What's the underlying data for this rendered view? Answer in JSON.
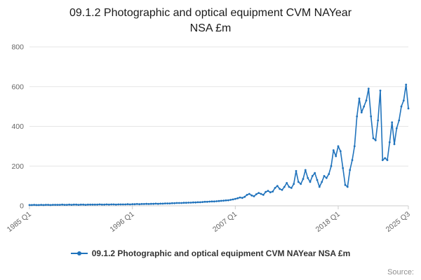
{
  "title": {
    "line1": "09.1.2 Photographic and optical equipment CVM NAYear",
    "line2": "NSA £m"
  },
  "legend": {
    "label": "09.1.2 Photographic and optical equipment CVM NAYear NSA £m"
  },
  "source": {
    "label": "Source:"
  },
  "chart_data": {
    "type": "line",
    "title": "09.1.2 Photographic and optical equipment CVM NAYear NSA £m",
    "series_name": "09.1.2 Photographic and optical equipment CVM NAYear NSA £m",
    "frequency": "quarterly",
    "x_start": "1985 Q1",
    "x_end": "2025 Q3",
    "xlabel": "",
    "ylabel": "",
    "ylim": [
      0,
      800
    ],
    "yticks": [
      0,
      200,
      400,
      600,
      800
    ],
    "grid": true,
    "legend_position": "bottom",
    "line_color": "#2073bc",
    "grid_color": "#e6e6e6",
    "axis_color": "#cccccc",
    "tick_label_color": "#666666",
    "x_ticks": [
      {
        "index": 0,
        "label": "1985 Q1"
      },
      {
        "index": 44,
        "label": "1996 Q1"
      },
      {
        "index": 88,
        "label": "2007 Q1"
      },
      {
        "index": 132,
        "label": "2018 Q1"
      },
      {
        "index": 162,
        "label": "2025 Q3"
      }
    ],
    "values": [
      4,
      4,
      5,
      4,
      4,
      5,
      4,
      5,
      5,
      4,
      5,
      5,
      5,
      5,
      6,
      5,
      5,
      6,
      5,
      6,
      6,
      5,
      6,
      6,
      5,
      6,
      6,
      6,
      6,
      6,
      7,
      6,
      6,
      7,
      6,
      7,
      7,
      6,
      7,
      7,
      7,
      7,
      8,
      7,
      8,
      8,
      9,
      8,
      9,
      9,
      10,
      9,
      10,
      10,
      11,
      10,
      11,
      11,
      12,
      12,
      12,
      13,
      13,
      14,
      14,
      14,
      15,
      15,
      16,
      16,
      17,
      17,
      18,
      18,
      19,
      20,
      20,
      21,
      22,
      22,
      23,
      24,
      25,
      26,
      27,
      28,
      30,
      32,
      35,
      38,
      42,
      40,
      45,
      55,
      60,
      52,
      48,
      58,
      65,
      60,
      55,
      70,
      75,
      68,
      72,
      90,
      100,
      85,
      80,
      95,
      115,
      95,
      90,
      110,
      175,
      120,
      110,
      135,
      180,
      140,
      120,
      150,
      165,
      130,
      95,
      120,
      150,
      140,
      160,
      200,
      280,
      250,
      300,
      275,
      190,
      105,
      95,
      180,
      230,
      300,
      450,
      540,
      470,
      500,
      530,
      590,
      450,
      340,
      330,
      430,
      580,
      230,
      240,
      230,
      320,
      420,
      310,
      390,
      430,
      500,
      530,
      610,
      490
    ]
  }
}
